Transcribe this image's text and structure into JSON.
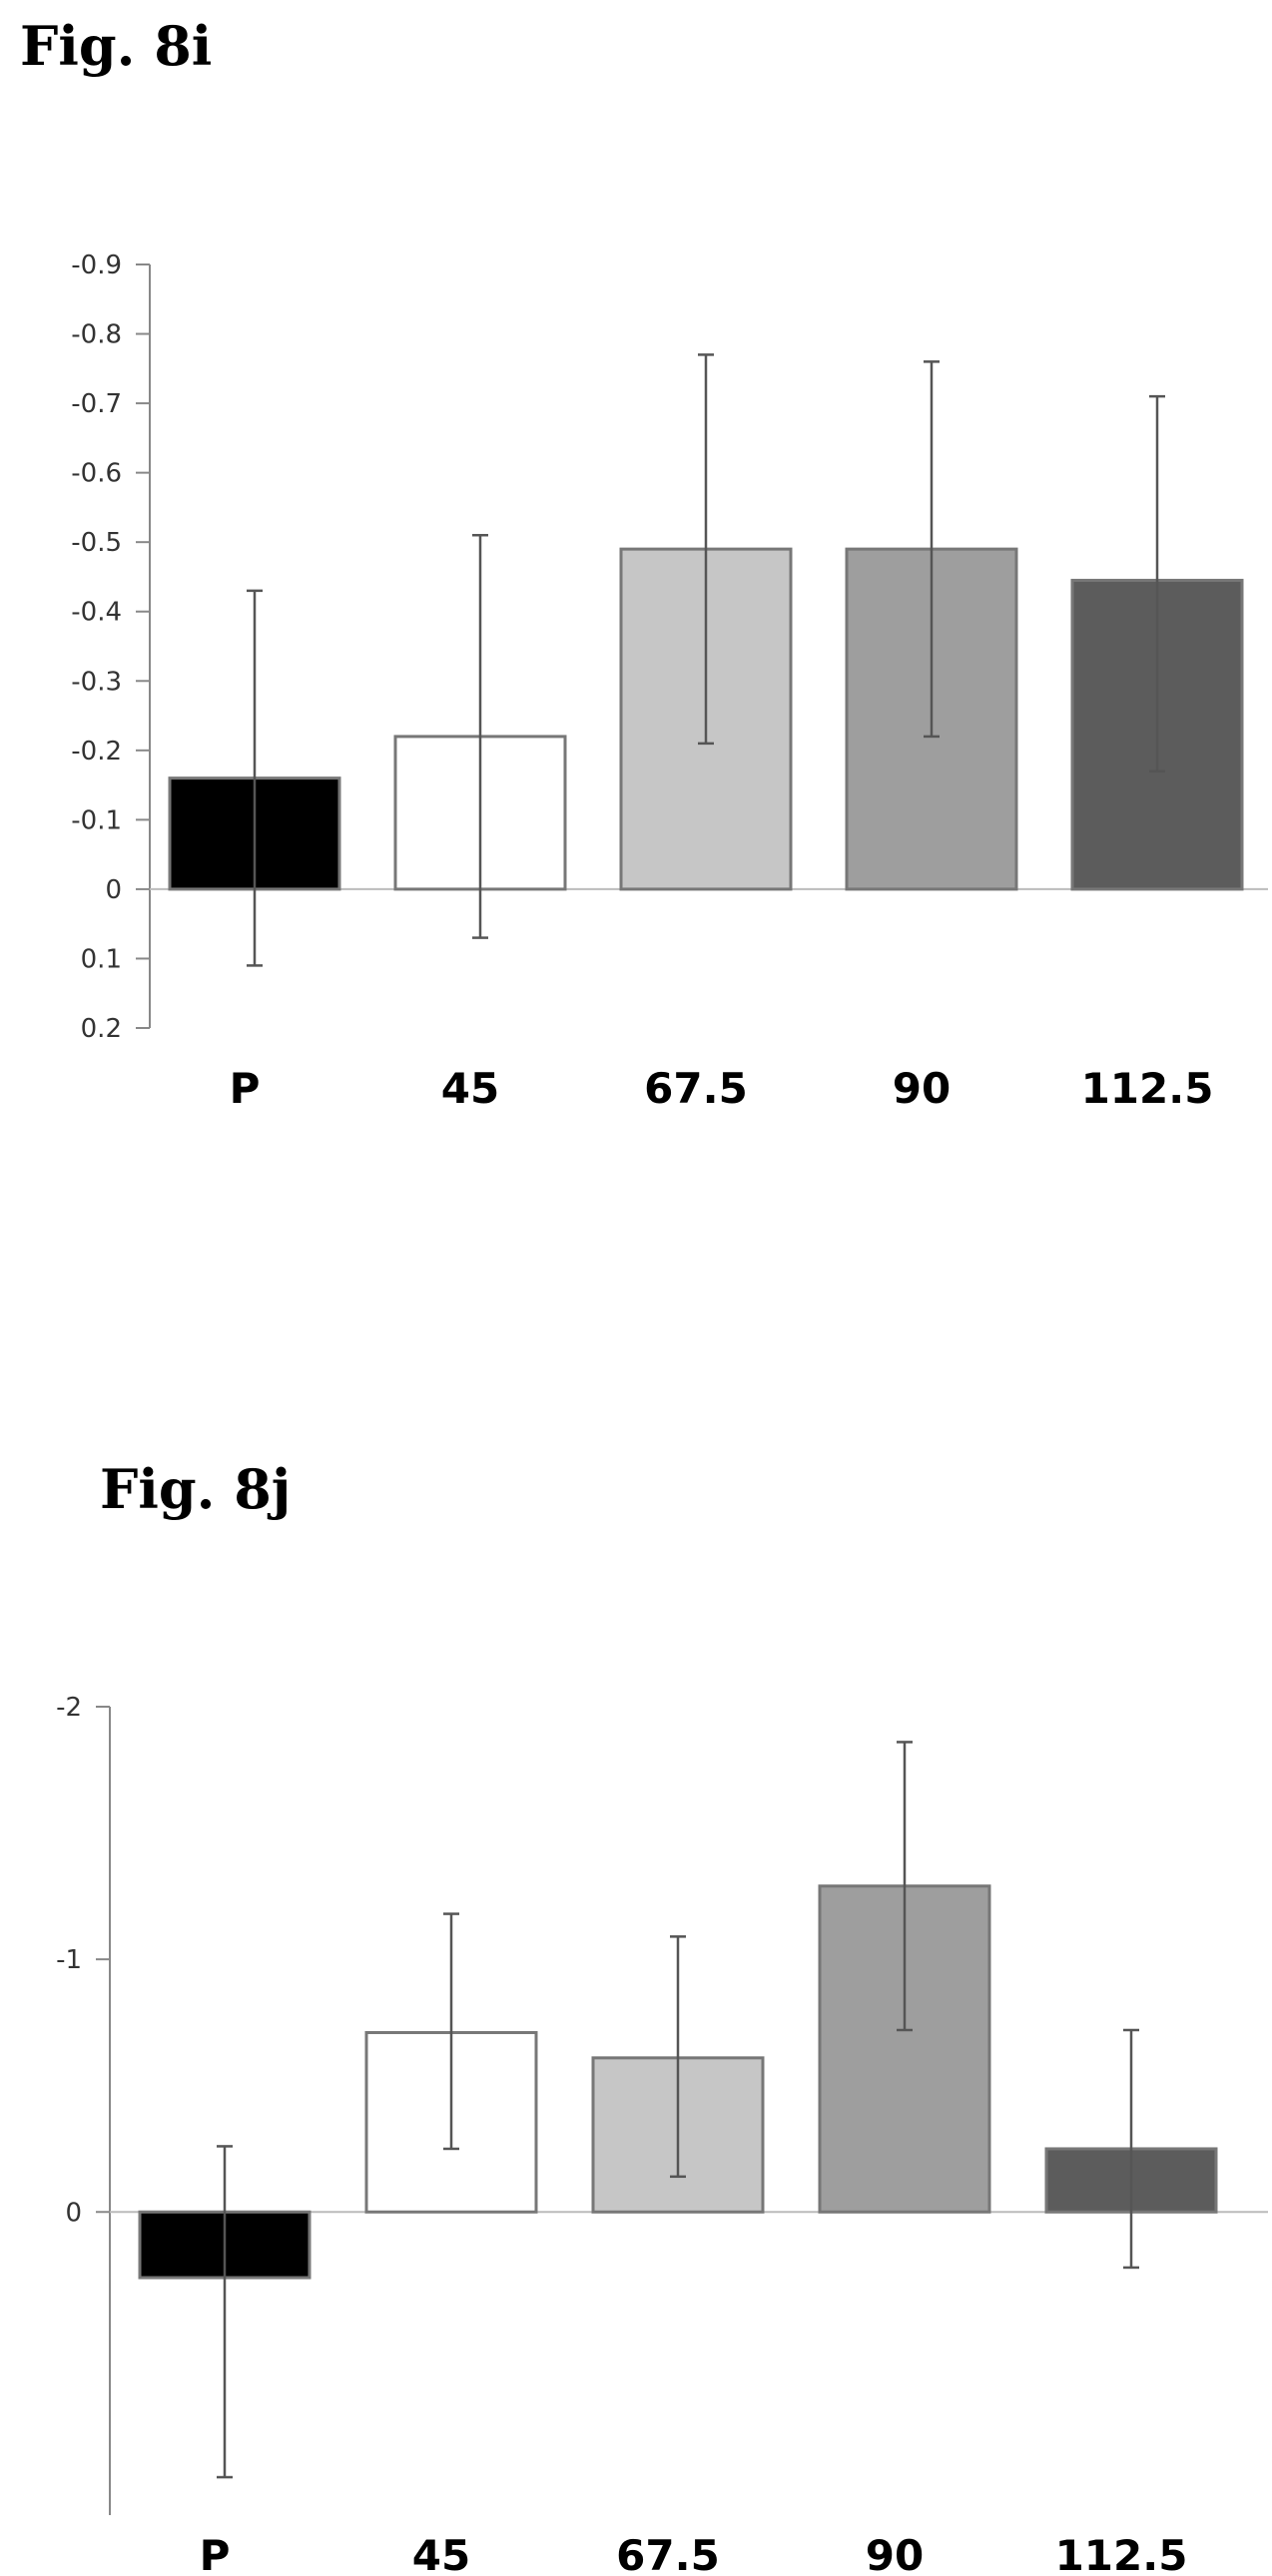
{
  "figures": [
    {
      "title": "Fig. 8i"
    },
    {
      "title": "Fig. 8j"
    }
  ],
  "chart_data": [
    {
      "type": "bar",
      "title": "Fig. 8i",
      "xlabel": "",
      "ylabel": "",
      "categories": [
        "P",
        "45",
        "67.5",
        "90",
        "112.5"
      ],
      "values": [
        -0.16,
        -0.22,
        -0.49,
        -0.49,
        -0.445
      ],
      "error_low": [
        0.11,
        0.07,
        -0.21,
        -0.22,
        -0.17
      ],
      "error_high": [
        -0.43,
        -0.51,
        -0.77,
        -0.76,
        -0.71
      ],
      "ylim": [
        0.2,
        -0.9
      ],
      "y_inverted": true,
      "yticks": [
        -0.9,
        -0.8,
        -0.7,
        -0.6,
        -0.5,
        -0.4,
        -0.3,
        -0.2,
        -0.1,
        0,
        0.1,
        0.2
      ],
      "ytick_labels": [
        "-0.9",
        "-0.8",
        "-0.7",
        "-0.6",
        "-0.5",
        "-0.4",
        "-0.3",
        "-0.2",
        "-0.1",
        "0",
        "0.1",
        "0.2"
      ],
      "colors": [
        "#000000",
        "#ffffff",
        "#c6c6c6",
        "#9e9e9e",
        "#5c5c5c"
      ],
      "grid": false,
      "legend": "none"
    },
    {
      "type": "bar",
      "title": "Fig. 8j",
      "xlabel": "",
      "ylabel": "",
      "categories": [
        "P",
        "45",
        "67.5",
        "90",
        "112.5"
      ],
      "values": [
        0.26,
        -0.71,
        -0.61,
        -1.29,
        -0.25
      ],
      "error_low": [
        1.05,
        -0.25,
        -0.14,
        -0.72,
        0.22
      ],
      "error_high": [
        -0.26,
        -1.18,
        -1.09,
        -1.86,
        -0.72
      ],
      "ylim": [
        1.2,
        -2
      ],
      "y_inverted": true,
      "yticks": [
        -2,
        -1,
        0
      ],
      "ytick_labels": [
        "-2",
        "-1",
        "0"
      ],
      "colors": [
        "#000000",
        "#ffffff",
        "#c6c6c6",
        "#9e9e9e",
        "#5c5c5c"
      ],
      "grid": false,
      "legend": "none"
    }
  ]
}
